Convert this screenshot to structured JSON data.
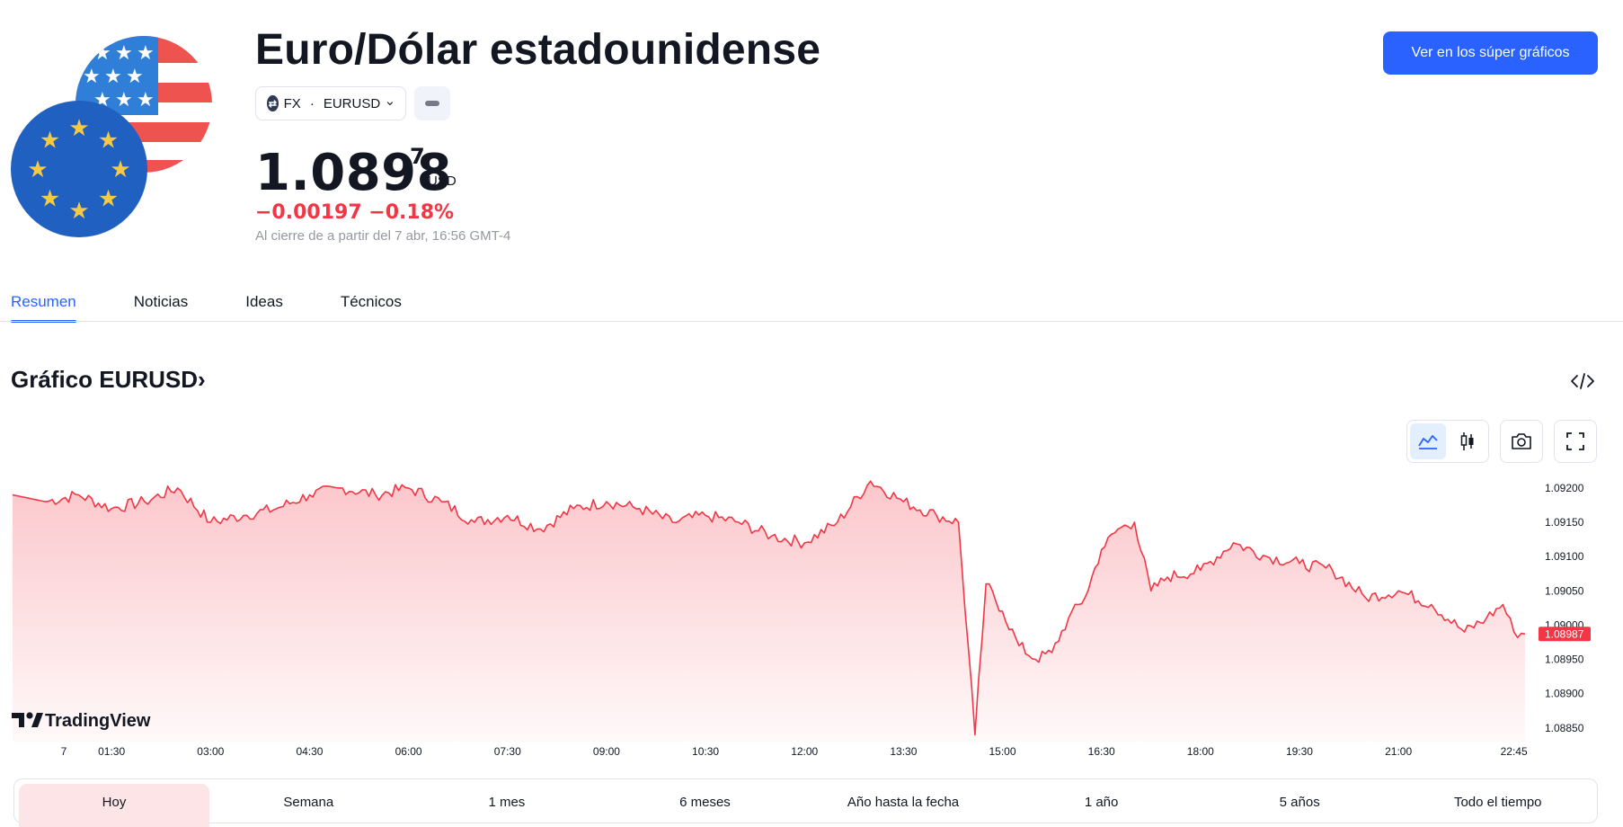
{
  "header": {
    "title": "Euro/Dólar estadounidense",
    "exchange_label": "FX",
    "exchange_badge": "⚙",
    "symbol": "EURUSD",
    "cta_label": "Ver en los súper gráficos"
  },
  "quote": {
    "price_main": "1.0898",
    "price_sup": "7",
    "currency": "USD",
    "change": "−0.00197 −0.18%",
    "close_note": "Al cierre de a partir del 7 abr, 16:56 GMT-4"
  },
  "colors": {
    "accent": "#2962ff",
    "negative": "#f23645",
    "eu_blue": "#2060c0",
    "eu_star": "#f6c945",
    "us_red": "#ef5350",
    "us_blue": "#2f7fd8"
  },
  "tabs": [
    {
      "label": "Resumen",
      "active": true
    },
    {
      "label": "Noticias",
      "active": false
    },
    {
      "label": "Ideas",
      "active": false
    },
    {
      "label": "Técnicos",
      "active": false
    }
  ],
  "chart_section": {
    "title": "Gráfico EURUSD",
    "chevron": "›",
    "watermark": "TradingView",
    "icons": [
      "code-embed-icon",
      "area-chart-icon",
      "candlestick-icon",
      "camera-icon",
      "fullscreen-icon"
    ]
  },
  "chart_data": {
    "type": "area",
    "series": [
      {
        "x": [
          "00:00",
          "00:30",
          "01:00",
          "01:30",
          "02:00",
          "02:30",
          "03:00",
          "03:30",
          "04:00",
          "04:30",
          "05:00",
          "05:30",
          "06:00",
          "06:30",
          "07:00",
          "07:30",
          "08:00",
          "08:30",
          "09:00",
          "09:30",
          "10:00",
          "10:30",
          "11:00",
          "11:30",
          "12:00",
          "12:30",
          "13:00",
          "13:30",
          "14:00",
          "14:20",
          "14:35",
          "14:45",
          "15:00",
          "15:15",
          "15:30",
          "15:45",
          "16:00",
          "16:15",
          "16:30",
          "16:45",
          "17:00",
          "17:15",
          "17:30",
          "18:00",
          "18:30",
          "19:00",
          "19:30",
          "20:00",
          "20:30",
          "21:00",
          "21:30",
          "22:00",
          "22:20",
          "22:35",
          "22:45",
          "22:55"
        ],
        "values": [
          1.0919,
          1.0918,
          1.0919,
          1.0917,
          1.0918,
          1.092,
          1.0915,
          1.0916,
          1.0917,
          1.0919,
          1.092,
          1.0919,
          1.092,
          1.0918,
          1.0915,
          1.0916,
          1.0914,
          1.0917,
          1.0918,
          1.0917,
          1.0915,
          1.0916,
          1.0915,
          1.0913,
          1.0912,
          1.0915,
          1.0921,
          1.0918,
          1.0916,
          1.0915,
          1.0884,
          1.0906,
          1.0902,
          1.0897,
          1.0895,
          1.0896,
          1.0901,
          1.0904,
          1.0911,
          1.0914,
          1.0915,
          1.0905,
          1.0907,
          1.0908,
          1.0912,
          1.091,
          1.0909,
          1.0908,
          1.0904,
          1.0905,
          1.0903,
          1.0899,
          1.0901,
          1.0903,
          1.0899,
          1.08987
        ]
      }
    ],
    "x_ticks": [
      "7",
      "01:30",
      "03:00",
      "04:30",
      "06:00",
      "07:30",
      "09:00",
      "10:30",
      "12:00",
      "13:30",
      "15:00",
      "16:30",
      "18:00",
      "19:30",
      "21:00",
      "22:45"
    ],
    "y_ticks": [
      "1.09200",
      "1.09150",
      "1.09100",
      "1.09050",
      "1.09000",
      "1.08950",
      "1.08900",
      "1.08850"
    ],
    "ylim": [
      1.0883,
      1.0923
    ],
    "last_value_label": "1.08987",
    "grid": false,
    "line_color": "#f23645"
  },
  "ranges": [
    {
      "label": "Hoy",
      "active": true
    },
    {
      "label": "Semana",
      "active": false
    },
    {
      "label": "1 mes",
      "active": false
    },
    {
      "label": "6 meses",
      "active": false
    },
    {
      "label": "Año hasta la fecha",
      "active": false
    },
    {
      "label": "1 año",
      "active": false
    },
    {
      "label": "5 años",
      "active": false
    },
    {
      "label": "Todo el tiempo",
      "active": false
    }
  ]
}
